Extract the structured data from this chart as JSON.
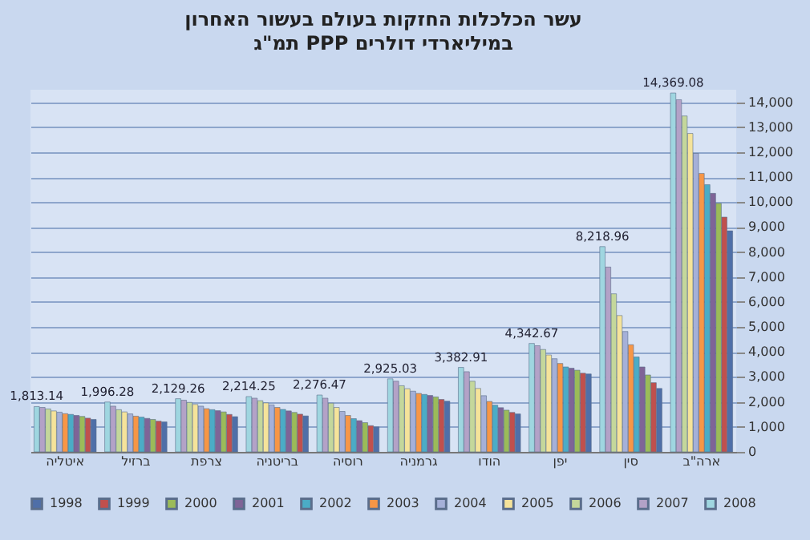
{
  "chart_data": {
    "type": "bar",
    "title": "עשר הכלכלות החזקות בעולם בעשור האחרון",
    "subtitle": "תמ\"ג PPP במיליארדי דולרים",
    "categories": [
      "איטליה",
      "ברזיל",
      "צרפת",
      "בריטניה",
      "רוסיה",
      "גרמניה",
      "הודו",
      "יפן",
      "סין",
      "ארה\"ב"
    ],
    "series": [
      {
        "name": "1998",
        "color": "#4f6fa8",
        "values": [
          1300,
          1200,
          1410,
          1440,
          1000,
          2030,
          1520,
          3120,
          2540,
          8850
        ]
      },
      {
        "name": "1999",
        "color": "#c0504d",
        "values": [
          1350,
          1230,
          1500,
          1510,
          1050,
          2100,
          1580,
          3150,
          2770,
          9400
        ]
      },
      {
        "name": "2000",
        "color": "#9bbb59",
        "values": [
          1420,
          1300,
          1600,
          1580,
          1170,
          2200,
          1670,
          3270,
          3080,
          9950
        ]
      },
      {
        "name": "2001",
        "color": "#7f6497",
        "values": [
          1460,
          1340,
          1650,
          1640,
          1250,
          2260,
          1770,
          3350,
          3400,
          10350
        ]
      },
      {
        "name": "2002",
        "color": "#4bacc6",
        "values": [
          1500,
          1390,
          1690,
          1700,
          1330,
          2300,
          1870,
          3400,
          3800,
          10700
        ]
      },
      {
        "name": "2003",
        "color": "#f79646",
        "values": [
          1530,
          1430,
          1730,
          1780,
          1460,
          2340,
          2020,
          3540,
          4290,
          11150
        ]
      },
      {
        "name": "2004",
        "color": "#a5b0d8",
        "values": [
          1590,
          1520,
          1830,
          1880,
          1620,
          2430,
          2250,
          3730,
          4820,
          11950
        ]
      },
      {
        "name": "2005",
        "color": "#f5e39a",
        "values": [
          1640,
          1600,
          1900,
          1960,
          1780,
          2530,
          2540,
          3880,
          5460,
          12750
        ]
      },
      {
        "name": "2006",
        "color": "#c4d79b",
        "values": [
          1720,
          1690,
          1980,
          2050,
          1950,
          2650,
          2830,
          4100,
          6330,
          13450
        ]
      },
      {
        "name": "2007",
        "color": "#b3a2c7",
        "values": [
          1780,
          1830,
          2070,
          2150,
          2150,
          2830,
          3210,
          4250,
          7400,
          14100
        ]
      },
      {
        "name": "2008",
        "color": "#9fd6e0",
        "values": [
          1813.14,
          1996.28,
          2129.26,
          2214.25,
          2276.47,
          2925.03,
          3382.91,
          4342.67,
          8218.96,
          14369.08
        ],
        "value_labels": [
          "1,813.14",
          "1,996.28",
          "2,129.26",
          "2,214.25",
          "2,276.47",
          "2,925.03",
          "3,382.91",
          "4,342.67",
          "8,218.96",
          "14,369.08"
        ]
      }
    ],
    "ylim": [
      0,
      14500
    ],
    "yticks": [
      {
        "value": 0,
        "label": "0"
      },
      {
        "value": 1000,
        "label": "1,000"
      },
      {
        "value": 2000,
        "label": "2,000"
      },
      {
        "value": 3000,
        "label": "3,000"
      },
      {
        "value": 4000,
        "label": "4,000"
      },
      {
        "value": 5000,
        "label": "5,000"
      },
      {
        "value": 6000,
        "label": "6,000"
      },
      {
        "value": 7000,
        "label": "7,000"
      },
      {
        "value": 8000,
        "label": "8,000"
      },
      {
        "value": 9000,
        "label": "9,000"
      },
      {
        "value": 10000,
        "label": "10,000"
      },
      {
        "value": 11000,
        "label": "11,000"
      },
      {
        "value": 12000,
        "label": "12,000"
      },
      {
        "value": 13000,
        "label": "13,000"
      },
      {
        "value": 14000,
        "label": "14,000"
      }
    ],
    "grid": "y",
    "legend": "bottom"
  }
}
